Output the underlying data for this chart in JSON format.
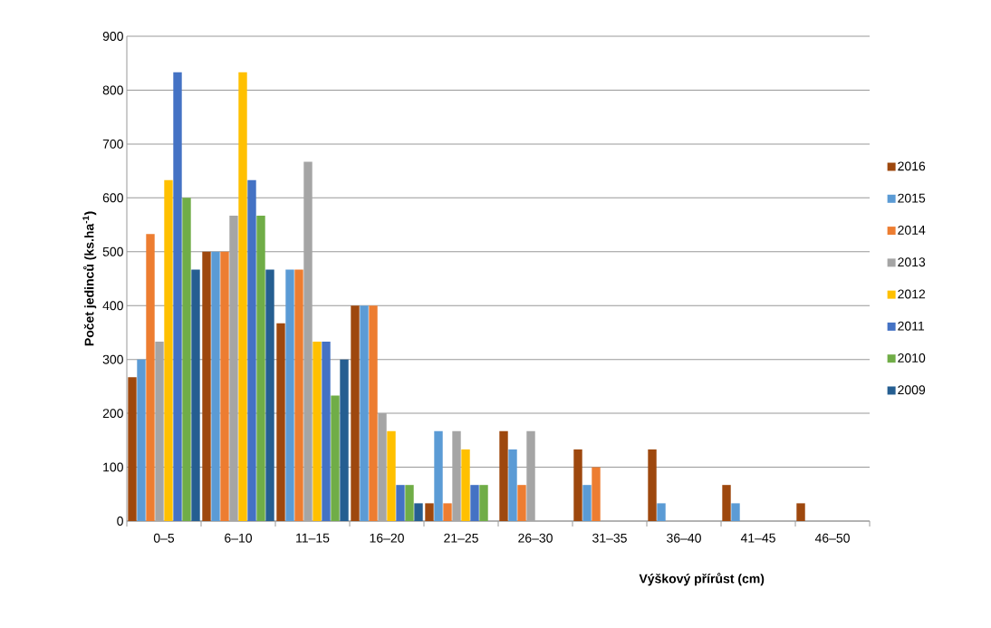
{
  "chart_data": {
    "type": "bar",
    "xlabel": "Výškový přírůst (cm)",
    "ylabel": "Počet jedinců (ks.ha$^{-1}$)",
    "categories": [
      "0–5",
      "6–10",
      "11–15",
      "16–20",
      "21–25",
      "26–30",
      "31–35",
      "36–40",
      "41–45",
      "46–50"
    ],
    "series": [
      {
        "name": "2016",
        "color": "#9e480e",
        "values": [
          267,
          500,
          367,
          400,
          33,
          167,
          133,
          133,
          67,
          33
        ]
      },
      {
        "name": "2015",
        "color": "#5b9bd5",
        "values": [
          300,
          500,
          467,
          400,
          167,
          133,
          67,
          33,
          33,
          0
        ]
      },
      {
        "name": "2014",
        "color": "#ed7d31",
        "values": [
          533,
          500,
          467,
          400,
          33,
          67,
          100,
          0,
          0,
          0
        ]
      },
      {
        "name": "2013",
        "color": "#a5a5a5",
        "values": [
          333,
          567,
          667,
          200,
          167,
          167,
          0,
          0,
          0,
          0
        ]
      },
      {
        "name": "2012",
        "color": "#ffc000",
        "values": [
          633,
          833,
          333,
          167,
          133,
          0,
          0,
          0,
          0,
          0
        ]
      },
      {
        "name": "2011",
        "color": "#4472c4",
        "values": [
          833,
          633,
          333,
          67,
          67,
          0,
          0,
          0,
          0,
          0
        ]
      },
      {
        "name": "2010",
        "color": "#70ad47",
        "values": [
          600,
          567,
          233,
          67,
          67,
          0,
          0,
          0,
          0,
          0
        ]
      },
      {
        "name": "2009",
        "color": "#255e91",
        "values": [
          467,
          467,
          300,
          33,
          0,
          0,
          0,
          0,
          0,
          0
        ]
      }
    ],
    "ylim": [
      0,
      900
    ],
    "yticks": [
      0,
      100,
      200,
      300,
      400,
      500,
      600,
      700,
      800,
      900
    ],
    "grid": "y",
    "legend": "right"
  }
}
